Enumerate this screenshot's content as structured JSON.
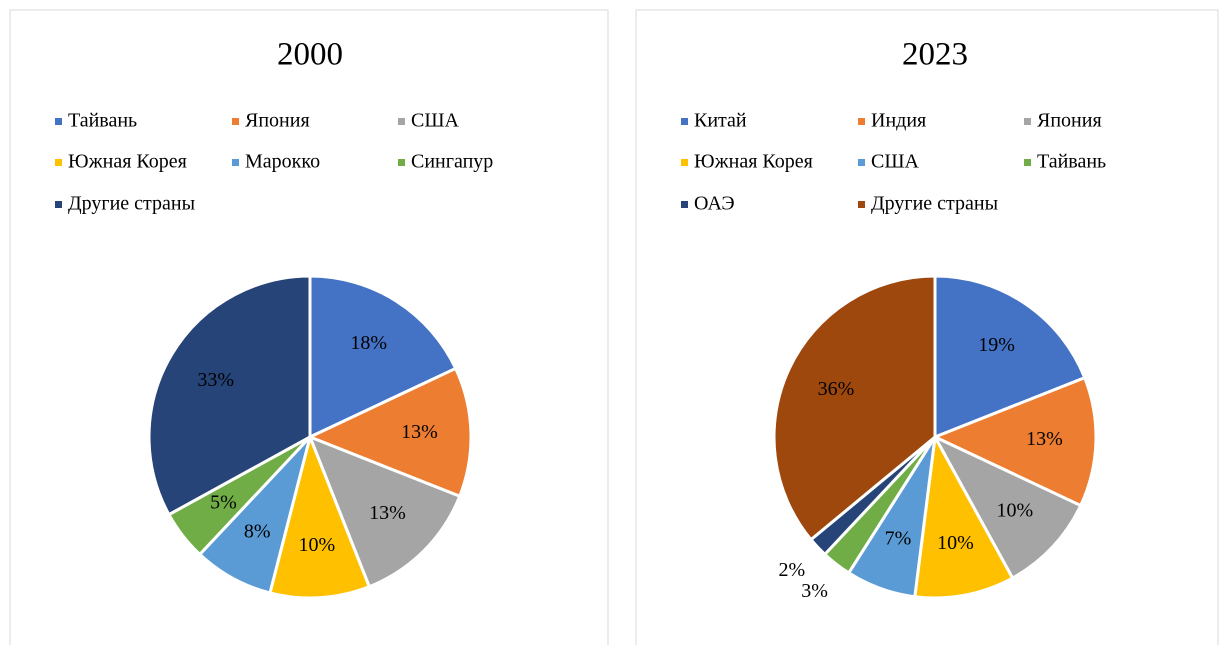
{
  "chart_data": [
    {
      "type": "pie",
      "title": "2000",
      "categories": [
        "Тайвань",
        "Япония",
        "США",
        "Южная Корея",
        "Марокко",
        "Сингапур",
        "Другие страны"
      ],
      "values": [
        18,
        13,
        13,
        10,
        8,
        5,
        33
      ],
      "value_labels": [
        "18%",
        "13%",
        "13%",
        "10%",
        "8%",
        "5%",
        "33%"
      ],
      "colors": [
        "#4472c4",
        "#ed7d31",
        "#a5a5a5",
        "#ffc000",
        "#5b9bd5",
        "#70ad47",
        "#264478"
      ],
      "legend": "top"
    },
    {
      "type": "pie",
      "title": "2023",
      "categories": [
        "Китай",
        "Индия",
        "Япония",
        "Южная Корея",
        "США",
        "Тайвань",
        "ОАЭ",
        "Другие страны"
      ],
      "values": [
        19,
        13,
        10,
        10,
        7,
        3,
        2,
        36
      ],
      "value_labels": [
        "19%",
        "13%",
        "10%",
        "10%",
        "7%",
        "3%",
        "2%",
        "36%"
      ],
      "colors": [
        "#4472c4",
        "#ed7d31",
        "#a5a5a5",
        "#ffc000",
        "#5b9bd5",
        "#70ad47",
        "#264478",
        "#9e480e"
      ],
      "legend": "top"
    }
  ]
}
